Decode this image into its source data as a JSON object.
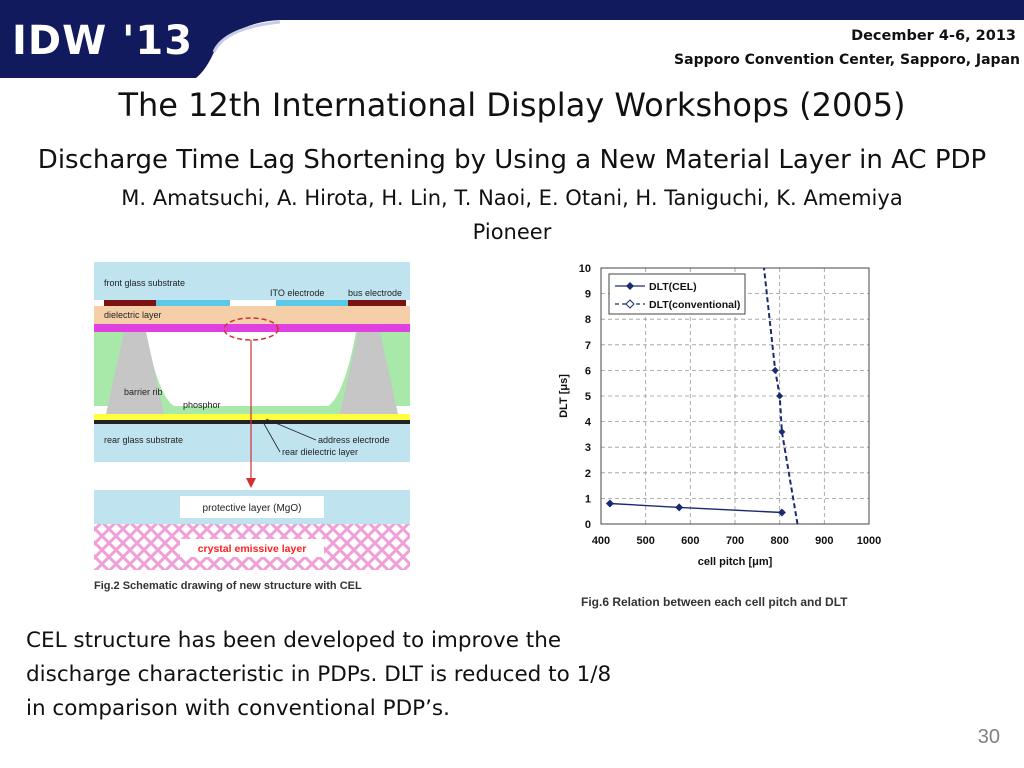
{
  "header": {
    "conference_name": "IDW '13",
    "date": "December 4-6, 2013",
    "venue": "Sapporo Convention Center, Sapporo, Japan"
  },
  "slide_title": "The 12th International Display Workshops (2005)",
  "paper": {
    "title": "Discharge Time Lag Shortening by Using a New Material Layer in AC PDP",
    "authors": "M. Amatsuchi, A. Hirota, H. Lin, T. Naoi, E. Otani, H. Taniguchi, K. Amemiya",
    "affiliation": "Pioneer"
  },
  "figure2": {
    "caption": "Fig.2 Schematic drawing of new structure with CEL",
    "labels": {
      "front_glass": "front glass substrate",
      "ito": "ITO electrode",
      "bus": "bus electrode",
      "dielectric": "dielectric layer",
      "barrier": "barrier rib",
      "phosphor": "phosphor",
      "rear_glass": "rear glass substrate",
      "address": "address electrode",
      "rear_dielectric": "rear dielectric layer",
      "protective": "protective layer (MgO)",
      "cel": "crystal emissive layer"
    },
    "colors": {
      "glass": "#bfe3ef",
      "dielectric_band": "#f4cfa8",
      "magenta": "#e040e0",
      "ito": "#5bc8e8",
      "bus": "#7a1414",
      "barrier": "#c6c6c6",
      "phosphor": "#a8e8a8",
      "yellow": "#ffff40",
      "arrow": "#d03030",
      "cel_pattern": "#f0a0d8",
      "cel_text": "#ff2020"
    }
  },
  "chart_data": {
    "type": "line",
    "caption": "Fig.6 Relation between each cell pitch and DLT",
    "xlabel": "cell pitch [μm]",
    "ylabel": "DLT [μs]",
    "xlim": [
      400,
      1000
    ],
    "ylim": [
      0,
      10
    ],
    "x_ticks": [
      "400",
      "500",
      "600",
      "700",
      "800",
      "900",
      "1000"
    ],
    "y_ticks": [
      "0",
      "1",
      "2",
      "3",
      "4",
      "5",
      "6",
      "7",
      "8",
      "9",
      "10"
    ],
    "grid": true,
    "legend_position": "top-left",
    "series": [
      {
        "name": "DLT(CEL)",
        "style": "solid",
        "marker": "filled-diamond",
        "points": [
          [
            420,
            0.8
          ],
          [
            575,
            0.65
          ],
          [
            805,
            0.45
          ]
        ]
      },
      {
        "name": "DLT(conventional)",
        "style": "dashed",
        "marker": "open-diamond",
        "points": [
          [
            840,
            0
          ],
          [
            805,
            3.6
          ],
          [
            800,
            5.0
          ],
          [
            790,
            6.0
          ],
          [
            765,
            10
          ]
        ]
      }
    ]
  },
  "summary": {
    "line1": "CEL structure has been developed to improve the",
    "line2": "discharge characteristic in PDPs. DLT is reduced to 1/8",
    "line3": "in comparison with conventional PDP’s."
  },
  "slide_number": "30"
}
